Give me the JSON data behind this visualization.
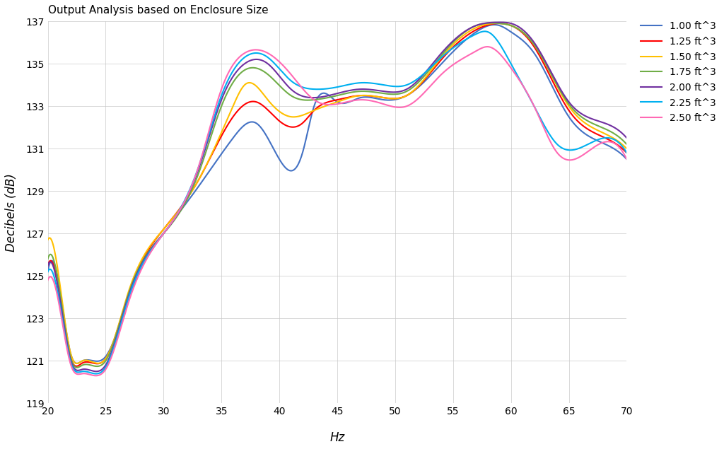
{
  "title": "Output Analysis based on Enclosure Size",
  "xlabel": "Hz",
  "ylabel": "Decibels (dB)",
  "xlim": [
    20,
    70
  ],
  "ylim": [
    119,
    137
  ],
  "xticks": [
    20,
    25,
    30,
    35,
    40,
    45,
    50,
    55,
    60,
    65,
    70
  ],
  "yticks": [
    119,
    121,
    123,
    125,
    127,
    129,
    131,
    133,
    135,
    137
  ],
  "series": [
    {
      "label": "1.00 ft^3",
      "color": "#4472C4",
      "kx": [
        20,
        21,
        22,
        23,
        25,
        27,
        30,
        33,
        36,
        38,
        40,
        42,
        43,
        45,
        47,
        49,
        51,
        54,
        57,
        59,
        60,
        62,
        65,
        67,
        70
      ],
      "ky": [
        125.2,
        124.5,
        121.3,
        121.0,
        121.2,
        124.0,
        127.0,
        129.2,
        131.5,
        132.2,
        130.5,
        130.8,
        133.0,
        133.2,
        133.4,
        133.3,
        133.5,
        135.0,
        136.5,
        136.8,
        136.5,
        135.5,
        132.5,
        131.5,
        130.5
      ]
    },
    {
      "label": "1.25 ft^3",
      "color": "#FF0000",
      "kx": [
        20,
        21,
        22,
        23,
        25,
        27,
        30,
        33,
        36,
        38,
        40,
        42,
        43,
        45,
        47,
        49,
        51,
        54,
        57,
        59,
        60,
        62,
        65,
        67,
        70
      ],
      "ky": [
        125.5,
        124.2,
        121.1,
        120.9,
        121.1,
        124.2,
        127.2,
        129.5,
        132.5,
        133.2,
        132.3,
        132.2,
        132.8,
        133.3,
        133.5,
        133.4,
        133.5,
        135.2,
        136.6,
        136.9,
        136.8,
        135.8,
        132.8,
        131.8,
        130.8
      ]
    },
    {
      "label": "1.50 ft^3",
      "color": "#FFC000",
      "kx": [
        20,
        21,
        22,
        23,
        25,
        27,
        30,
        33,
        36,
        37,
        39,
        41,
        43,
        45,
        47,
        49,
        51,
        54,
        57,
        59,
        60,
        62,
        65,
        67,
        70
      ],
      "ky": [
        126.7,
        124.8,
        121.3,
        121.0,
        121.1,
        124.3,
        127.2,
        129.5,
        133.0,
        134.0,
        133.3,
        132.5,
        132.8,
        133.2,
        133.5,
        133.4,
        133.5,
        135.3,
        136.7,
        136.9,
        136.8,
        135.9,
        133.0,
        132.0,
        131.0
      ]
    },
    {
      "label": "1.75 ft^3",
      "color": "#70AD47",
      "kx": [
        20,
        21,
        22,
        23,
        25,
        27,
        30,
        33,
        35,
        37,
        39,
        41,
        43,
        45,
        47,
        49,
        51,
        54,
        57,
        59,
        60,
        62,
        65,
        67,
        70
      ],
      "ky": [
        125.8,
        124.4,
        121.1,
        120.8,
        121.0,
        124.2,
        127.0,
        129.8,
        133.0,
        134.7,
        134.5,
        133.5,
        133.3,
        133.5,
        133.7,
        133.6,
        133.7,
        135.4,
        136.8,
        136.9,
        136.8,
        135.9,
        133.1,
        132.2,
        131.2
      ]
    },
    {
      "label": "2.00 ft^3",
      "color": "#7030A0",
      "kx": [
        20,
        21,
        22,
        23,
        25,
        27,
        30,
        33,
        35,
        37,
        39,
        41,
        43,
        45,
        47,
        49,
        51,
        54,
        57,
        59,
        60,
        62,
        65,
        67,
        70
      ],
      "ky": [
        125.5,
        124.1,
        121.0,
        120.6,
        120.8,
        124.1,
        127.0,
        130.0,
        133.3,
        135.0,
        135.0,
        133.8,
        133.4,
        133.6,
        133.8,
        133.7,
        133.8,
        135.5,
        136.8,
        136.95,
        136.9,
        136.0,
        133.2,
        132.4,
        131.5
      ]
    },
    {
      "label": "2.25 ft^3",
      "color": "#00B0F0",
      "kx": [
        20,
        21,
        22,
        23,
        25,
        27,
        30,
        33,
        35,
        37,
        39,
        41,
        43,
        45,
        47,
        49,
        51,
        54,
        57,
        58,
        60,
        62,
        64,
        67,
        70
      ],
      "ky": [
        125.2,
        123.8,
        120.9,
        120.5,
        120.7,
        124.0,
        127.0,
        130.1,
        133.5,
        135.3,
        135.3,
        134.2,
        133.8,
        133.9,
        134.1,
        134.0,
        134.0,
        135.3,
        136.4,
        136.5,
        135.0,
        133.0,
        131.2,
        131.3,
        130.8
      ]
    },
    {
      "label": "2.50 ft^3",
      "color": "#FF69B4",
      "kx": [
        20,
        21,
        22,
        23,
        25,
        27,
        30,
        33,
        35,
        37,
        39,
        41,
        43,
        45,
        47,
        49,
        51,
        54,
        57,
        58,
        60,
        62,
        64,
        67,
        70
      ],
      "ky": [
        124.8,
        123.6,
        120.8,
        120.4,
        120.6,
        123.8,
        127.0,
        130.1,
        133.8,
        135.5,
        135.5,
        134.5,
        133.3,
        133.1,
        133.3,
        133.1,
        133.0,
        134.5,
        135.6,
        135.8,
        134.8,
        133.0,
        130.8,
        131.0,
        130.5
      ]
    }
  ],
  "background_color": "#FFFFFF",
  "grid_color": "#C8C8C8",
  "title_fontsize": 11,
  "label_fontsize": 12,
  "tick_fontsize": 10,
  "legend_fontsize": 10,
  "linewidth": 1.5
}
